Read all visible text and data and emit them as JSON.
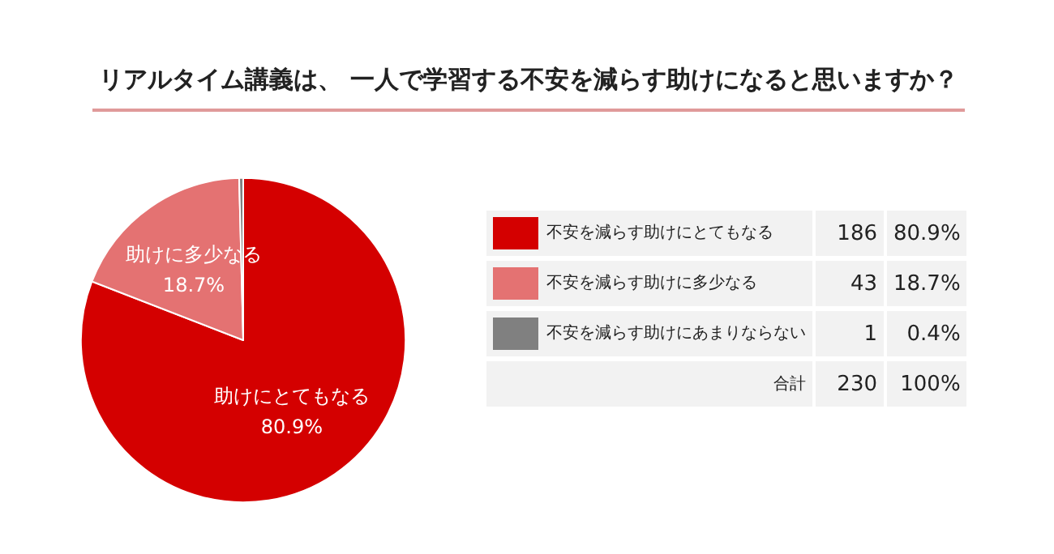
{
  "chart_data": {
    "type": "pie",
    "title": "リアルタイム講義は、 一人で学習する不安を減らす助けになると思いますか？",
    "categories": [
      "不安を減らす助けにとてもなる",
      "不安を減らす助けに多少なる",
      "不安を減らす助けにあまりならない"
    ],
    "values": [
      80.9,
      18.7,
      0.4
    ],
    "colors": [
      "#d40000",
      "#e47272",
      "#808080"
    ],
    "value_labels": [
      "80.9%",
      "18.7%",
      "0.4%"
    ],
    "annotations": [
      "助けにとてもなる",
      "助けに多少なる",
      "合計",
      "186",
      "43",
      "1"
    ],
    "totals": [
      "230",
      "100%"
    ],
    "legend": "right"
  }
}
